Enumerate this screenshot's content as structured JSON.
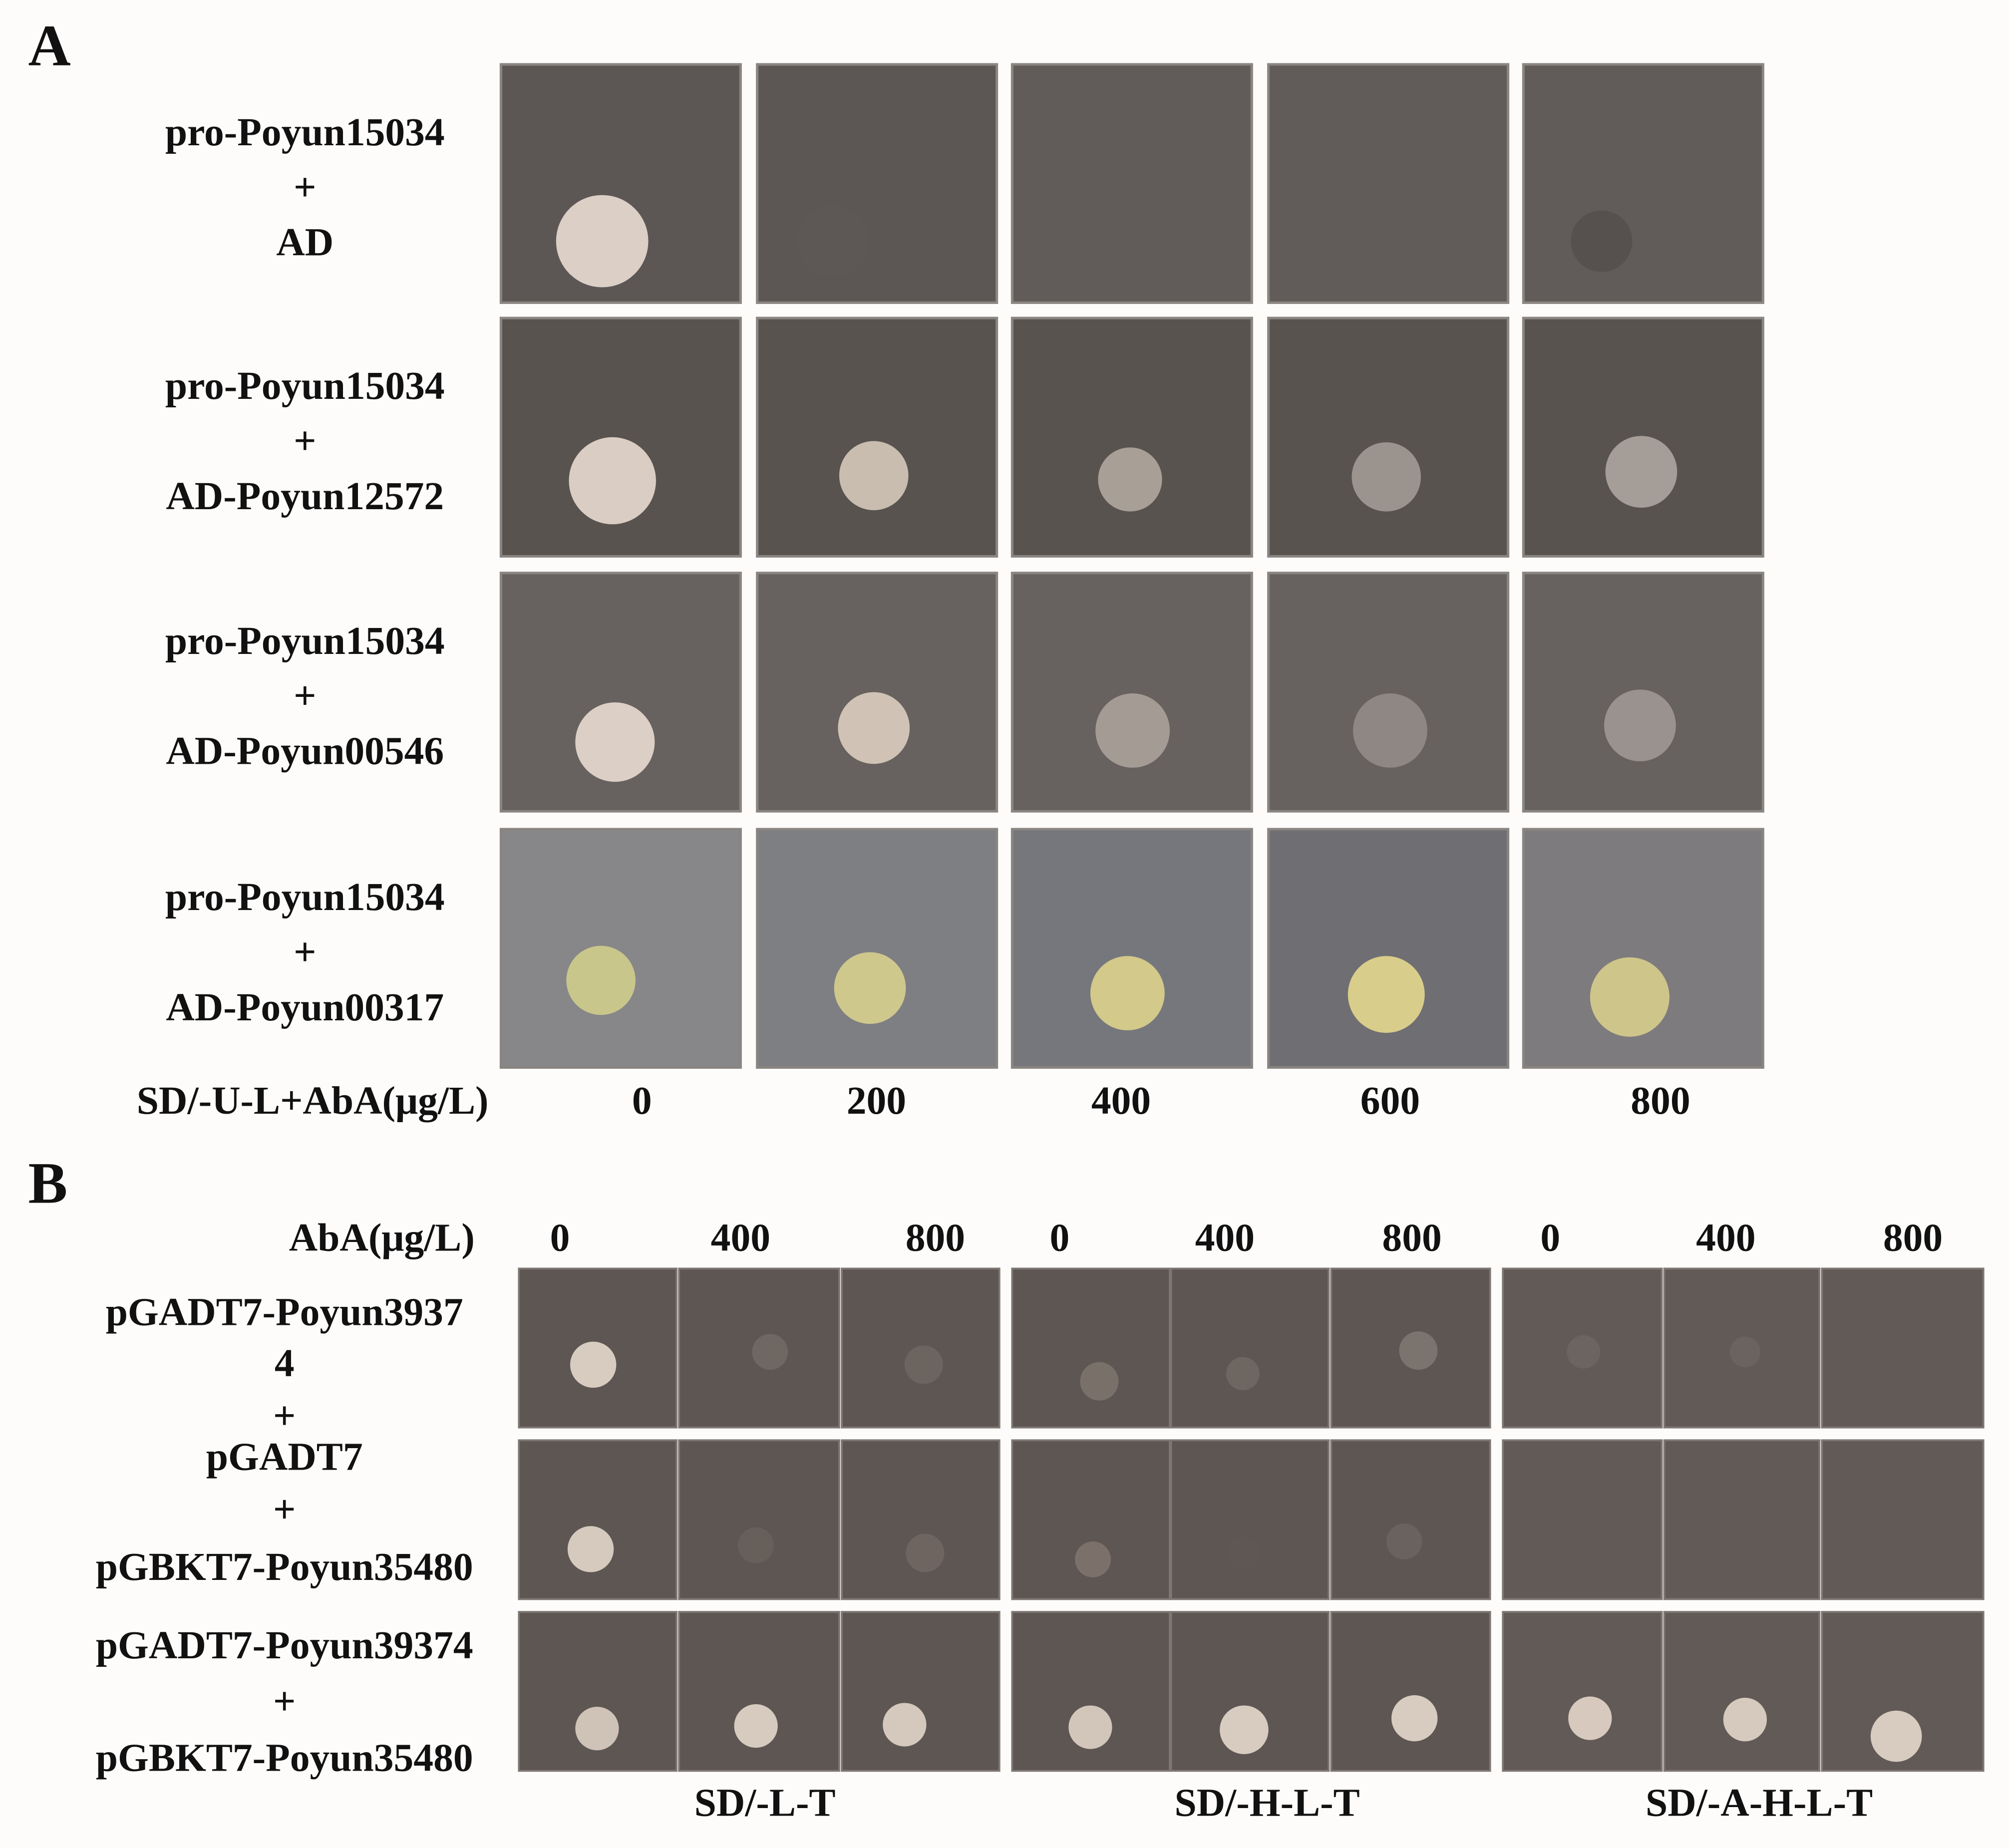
{
  "panel_a": {
    "label": "A",
    "rows": [
      [
        "pro-Poyun15034",
        "+",
        "AD"
      ],
      [
        "pro-Poyun15034",
        "+",
        "AD-Poyun12572"
      ],
      [
        "pro-Poyun15034",
        "+",
        "AD-Poyun00546"
      ],
      [
        "pro-Poyun15034",
        "+",
        "AD-Poyun00317"
      ]
    ],
    "medium_label": "SD/-U-L+AbA(μg/L)",
    "concentrations": [
      0,
      200,
      400,
      600,
      800
    ]
  },
  "panel_b": {
    "label": "B",
    "aba_label": "AbA(μg/L)",
    "concentrations": [
      0,
      400,
      800,
      0,
      400,
      800,
      0,
      400,
      800
    ],
    "row_labels": [
      "pGADT7-Poyun3937",
      "4",
      "+",
      "pGADT7",
      "+",
      "pGBKT7-Poyun35480",
      "pGADT7-Poyun39374",
      "+",
      "pGBKT7-Poyun35480"
    ],
    "media": [
      "SD/-L-T",
      "SD/-H-L-T",
      "SD/-A-H-L-T"
    ]
  }
}
